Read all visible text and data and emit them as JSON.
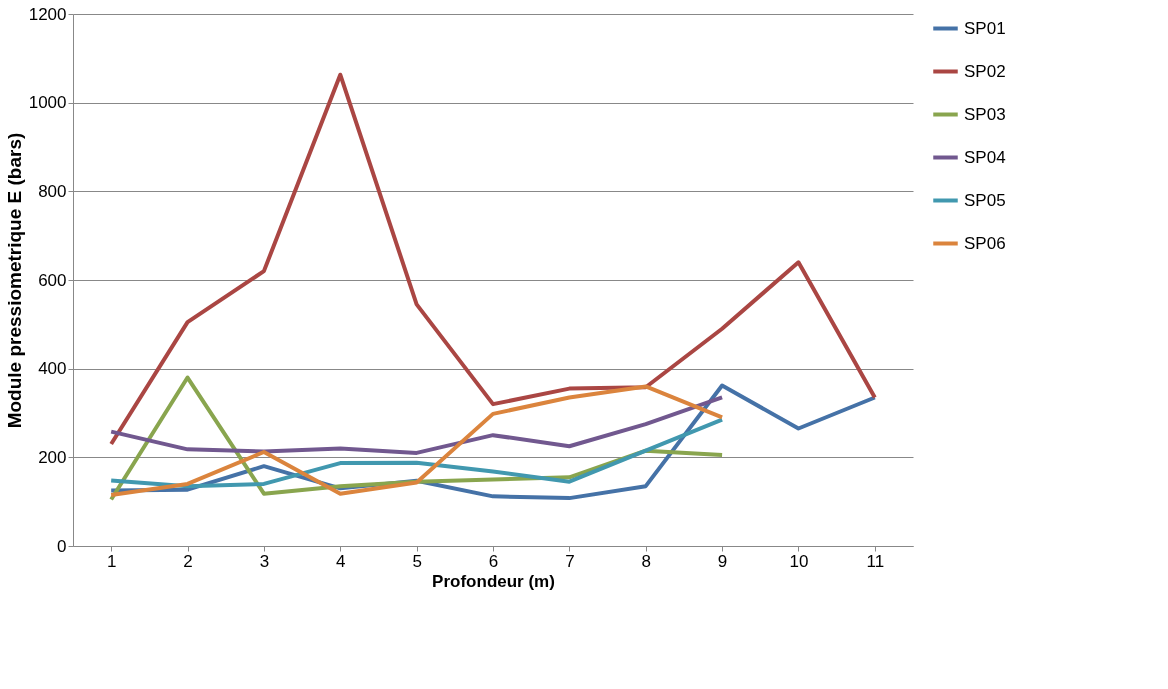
{
  "chart_data": {
    "type": "line",
    "xlabel": "Profondeur (m)",
    "ylabel": "Module pressiometrique E (bars)",
    "categories": [
      "1",
      "2",
      "3",
      "4",
      "5",
      "6",
      "7",
      "8",
      "9",
      "10",
      "11"
    ],
    "ylim": [
      0,
      1200
    ],
    "yticks": [
      0,
      200,
      400,
      600,
      800,
      1000,
      1200
    ],
    "grid": "y",
    "legend": "right",
    "marker": "none",
    "line_style": "solid",
    "series": [
      {
        "name": "SP01",
        "color": "#4572a7",
        "values": [
          125,
          127,
          180,
          130,
          147,
          112,
          108,
          135,
          362,
          265,
          335
        ]
      },
      {
        "name": "SP02",
        "color": "#aa4643",
        "values": [
          230,
          505,
          620,
          1063,
          545,
          320,
          355,
          358,
          490,
          640,
          335
        ]
      },
      {
        "name": "SP03",
        "color": "#89a54e",
        "values": [
          105,
          380,
          118,
          135,
          145,
          150,
          155,
          215,
          205,
          null,
          null
        ]
      },
      {
        "name": "SP04",
        "color": "#71588f",
        "values": [
          258,
          218,
          213,
          220,
          210,
          250,
          225,
          275,
          335,
          null,
          null
        ]
      },
      {
        "name": "SP05",
        "color": "#4198af",
        "values": [
          148,
          135,
          140,
          187,
          188,
          168,
          145,
          215,
          285,
          null,
          null
        ]
      },
      {
        "name": "SP06",
        "color": "#db843d",
        "values": [
          115,
          140,
          212,
          118,
          143,
          298,
          335,
          360,
          290,
          null,
          null
        ]
      }
    ]
  }
}
